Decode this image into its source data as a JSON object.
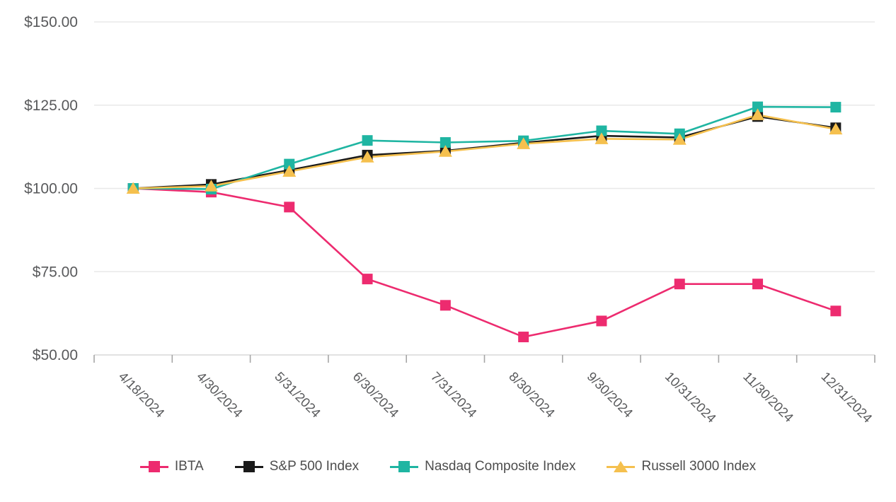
{
  "chart_data": {
    "type": "line",
    "title": "",
    "categories": [
      "4/18/2024",
      "4/30/2024",
      "5/31/2024",
      "6/30/2024",
      "7/31/2024",
      "8/30/2024",
      "9/30/2024",
      "10/31/2024",
      "11/30/2024",
      "12/31/2024"
    ],
    "series": [
      {
        "name": "IBTA",
        "color": "#ED2B6F",
        "marker": "square",
        "values": [
          100.0,
          98.9,
          94.4,
          72.8,
          64.9,
          55.4,
          60.2,
          71.3,
          71.3,
          63.2
        ]
      },
      {
        "name": "S&P 500 Index",
        "color": "#1A1A1A",
        "marker": "square",
        "values": [
          100.0,
          101.2,
          105.5,
          110.0,
          111.3,
          113.7,
          115.8,
          115.3,
          121.6,
          118.2
        ]
      },
      {
        "name": "Nasdaq Composite Index",
        "color": "#1FB5A2",
        "marker": "square",
        "values": [
          100.0,
          99.8,
          107.3,
          114.4,
          113.8,
          114.3,
          117.3,
          116.4,
          124.5,
          124.4
        ]
      },
      {
        "name": "Russell 3000 Index",
        "color": "#F5C04E",
        "marker": "triangle",
        "values": [
          100.0,
          100.7,
          105.1,
          109.4,
          111.1,
          113.4,
          114.9,
          114.7,
          122.1,
          117.8
        ]
      }
    ],
    "xlabel": "",
    "ylabel": "",
    "ylim": [
      50,
      150
    ],
    "yticks": [
      {
        "value": 150,
        "label": "$150.00"
      },
      {
        "value": 125,
        "label": "$125.00"
      },
      {
        "value": 100,
        "label": "$100.00"
      },
      {
        "value": 75,
        "label": "$75.00"
      },
      {
        "value": 50,
        "label": "$50.00"
      }
    ],
    "grid": "horizontal-on",
    "legend_position": "bottom-center",
    "colors": {
      "grid_line": "#E8E8E8",
      "axis_line": "#D9D9D9",
      "tick_mark": "#A6A6A6",
      "axis_label_text": "#58595B",
      "legend_text": "#4D4D4D",
      "background": "#FFFFFF"
    }
  }
}
